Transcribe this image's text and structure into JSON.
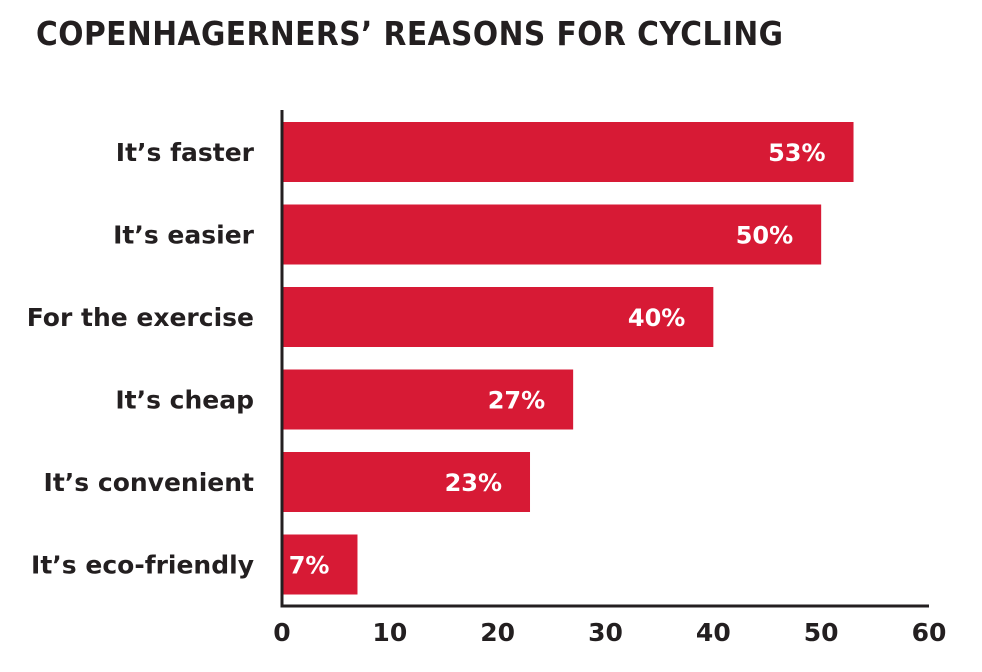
{
  "chart_data": {
    "type": "bar",
    "orientation": "horizontal",
    "title": "COPENHAGERNERS’ REASONS FOR CYCLING",
    "xlabel": "",
    "ylabel": "",
    "categories": [
      "It’s faster",
      "It’s easier",
      "For the exercise",
      "It’s cheap",
      "It’s convenient",
      "It’s eco-friendly"
    ],
    "values": [
      53,
      50,
      40,
      27,
      23,
      7
    ],
    "data_labels": [
      "53%",
      "50%",
      "40%",
      "27%",
      "23%",
      "7%"
    ],
    "xlim": [
      0,
      60
    ],
    "xticks": [
      0,
      10,
      20,
      30,
      40,
      50,
      60
    ],
    "grid": false,
    "legend": "none",
    "colors": {
      "bar": "#d71a35",
      "axis": "#231f20",
      "data_label": "#ffffff",
      "text": "#231f20"
    }
  }
}
